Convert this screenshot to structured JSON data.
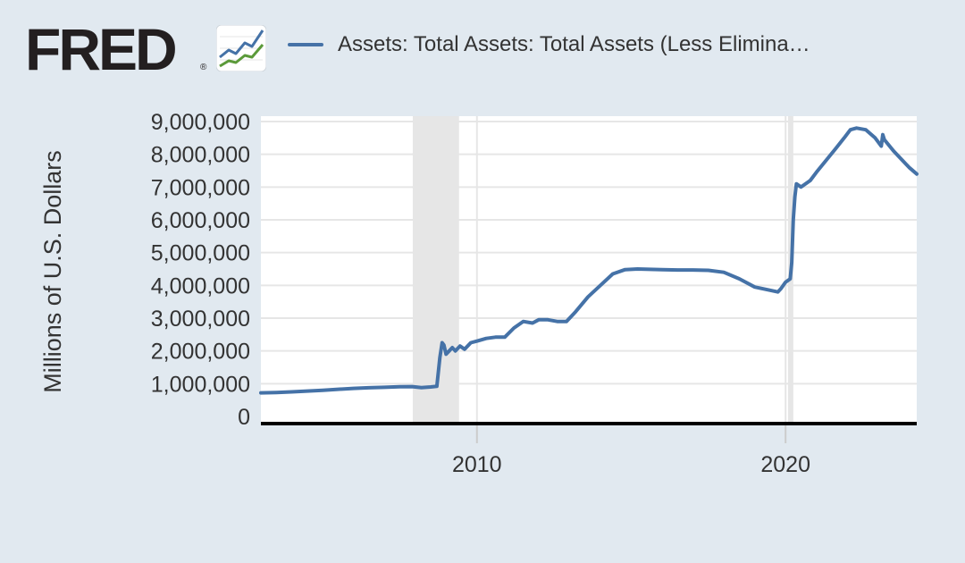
{
  "logo": {
    "text": "FRED",
    "registered": "®"
  },
  "colors": {
    "background": "#e1e9f0",
    "plot_background": "#ffffff",
    "gridline": "#e6e6e6",
    "series": "#4572a7",
    "recession": "#e6e6e6",
    "axis_line": "#000000",
    "text": "#333333"
  },
  "legend": {
    "label": "Assets: Total Assets: Total Assets (Less Elimina…"
  },
  "chart_data": {
    "type": "line",
    "title": "",
    "xlabel": "",
    "ylabel": "Millions of U.S. Dollars",
    "xlim": [
      2003.0,
      2024.25
    ],
    "ylim": [
      0,
      9000000
    ],
    "x_ticks": [
      2010,
      2020
    ],
    "x_tick_labels": [
      "2010",
      "2020"
    ],
    "y_ticks": [
      0,
      1000000,
      2000000,
      3000000,
      4000000,
      5000000,
      6000000,
      7000000,
      8000000,
      9000000
    ],
    "y_tick_labels": [
      "0",
      "1,000,000",
      "2,000,000",
      "3,000,000",
      "4,000,000",
      "5,000,000",
      "6,000,000",
      "7,000,000",
      "8,000,000",
      "9,000,000"
    ],
    "grid": true,
    "legend_position": "top",
    "recessions": [
      {
        "start": 2007.92,
        "end": 2009.42
      },
      {
        "start": 2020.08,
        "end": 2020.25
      }
    ],
    "series": [
      {
        "name": "Assets: Total Assets: Total Assets (Less Elimina…",
        "x": [
          2003.0,
          2003.5,
          2004.0,
          2004.5,
          2005.0,
          2005.5,
          2006.0,
          2006.5,
          2007.0,
          2007.5,
          2007.9,
          2008.2,
          2008.5,
          2008.7,
          2008.8,
          2008.87,
          2008.93,
          2009.0,
          2009.1,
          2009.2,
          2009.3,
          2009.45,
          2009.6,
          2009.8,
          2010.0,
          2010.3,
          2010.6,
          2010.9,
          2011.2,
          2011.5,
          2011.8,
          2012.0,
          2012.3,
          2012.6,
          2012.9,
          2013.2,
          2013.6,
          2014.0,
          2014.4,
          2014.8,
          2015.2,
          2015.6,
          2016.0,
          2016.5,
          2017.0,
          2017.5,
          2018.0,
          2018.5,
          2019.0,
          2019.5,
          2019.75,
          2019.85,
          2020.0,
          2020.15,
          2020.2,
          2020.25,
          2020.3,
          2020.35,
          2020.5,
          2020.8,
          2021.0,
          2021.3,
          2021.6,
          2021.9,
          2022.1,
          2022.3,
          2022.6,
          2022.9,
          2023.1,
          2023.15,
          2023.2,
          2023.5,
          2023.8,
          2024.0,
          2024.25
        ],
        "values": [
          720000,
          730000,
          750000,
          775000,
          800000,
          830000,
          855000,
          875000,
          890000,
          905000,
          910000,
          880000,
          900000,
          920000,
          1800000,
          2250000,
          2180000,
          1900000,
          2000000,
          2100000,
          2000000,
          2150000,
          2050000,
          2250000,
          2300000,
          2380000,
          2420000,
          2420000,
          2700000,
          2900000,
          2850000,
          2950000,
          2950000,
          2900000,
          2900000,
          3200000,
          3650000,
          4000000,
          4350000,
          4480000,
          4500000,
          4490000,
          4480000,
          4470000,
          4470000,
          4460000,
          4400000,
          4200000,
          3950000,
          3850000,
          3800000,
          3900000,
          4100000,
          4200000,
          4700000,
          6000000,
          6700000,
          7100000,
          7000000,
          7200000,
          7450000,
          7800000,
          8150000,
          8500000,
          8750000,
          8800000,
          8750000,
          8500000,
          8250000,
          8600000,
          8450000,
          8100000,
          7800000,
          7600000,
          7400000
        ]
      }
    ]
  }
}
